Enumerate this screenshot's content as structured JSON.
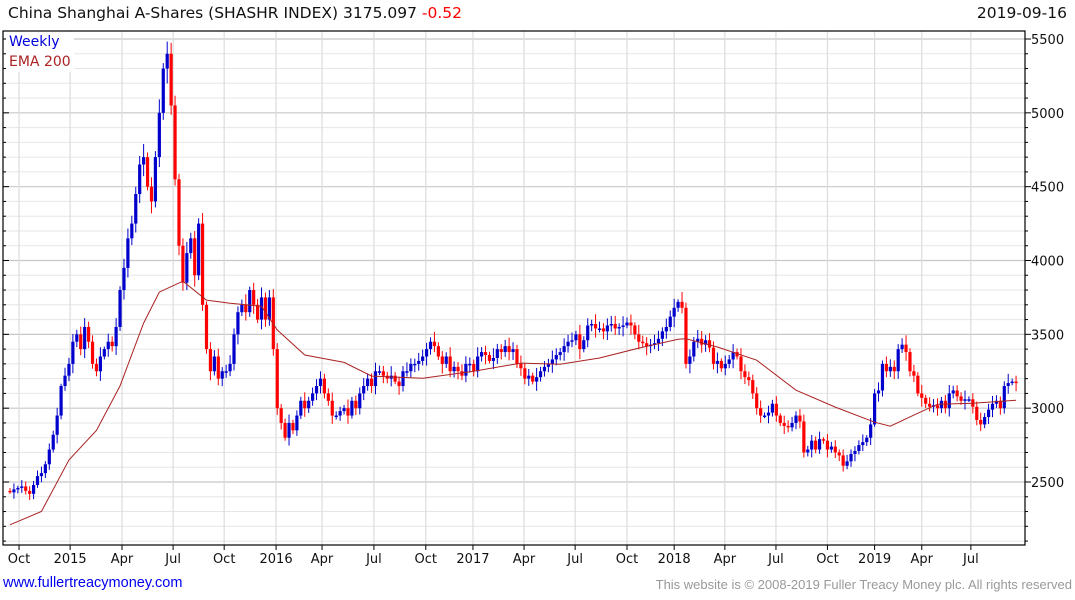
{
  "header": {
    "title": "China Shanghai A-Shares (SHASHR INDEX)",
    "last": "3175.097",
    "change": "-0.52",
    "date": "2019-09-16"
  },
  "footer": {
    "link": "www.fullertreacymoney.com",
    "copyright": "This website is © 2008-2019 Fuller Treacy Money plc. All rights reserved"
  },
  "colors": {
    "up": "#0000cc",
    "down": "#ff0000",
    "ema": "#aa2222",
    "grid_major": "#c8c8c8",
    "grid_minor": "#e6e6e6"
  },
  "chart_data": {
    "type": "candlestick",
    "title": "China Shanghai A-Shares (SHASHR INDEX)",
    "interval": "Weekly",
    "legend": [
      "Weekly",
      "EMA 200"
    ],
    "legend_position": "top-left",
    "ylim": [
      2070,
      5550
    ],
    "y_ticks": [
      2500,
      3000,
      3500,
      4000,
      4500,
      5000,
      5500
    ],
    "x_ticks": [
      {
        "label": "Oct",
        "week": 2.3
      },
      {
        "label": "2015",
        "week": 15.3
      },
      {
        "label": "Apr",
        "week": 28.5
      },
      {
        "label": "Jul",
        "week": 41.5
      },
      {
        "label": "Oct",
        "week": 54.5
      },
      {
        "label": "2016",
        "week": 67.7
      },
      {
        "label": "Apr",
        "week": 79.4
      },
      {
        "label": "Jul",
        "week": 92.6
      },
      {
        "label": "Oct",
        "week": 105.8
      },
      {
        "label": "2017",
        "week": 117.8
      },
      {
        "label": "Apr",
        "week": 130.8
      },
      {
        "label": "Jul",
        "week": 143.8
      },
      {
        "label": "Oct",
        "week": 157
      },
      {
        "label": "2018",
        "week": 169
      },
      {
        "label": "Apr",
        "week": 181.9
      },
      {
        "label": "Jul",
        "week": 194.9
      },
      {
        "label": "Oct",
        "week": 208
      },
      {
        "label": "2019",
        "week": 220
      },
      {
        "label": "Apr",
        "week": 232
      },
      {
        "label": "Jul",
        "week": 244.5
      }
    ],
    "weekly_close": [
      2430,
      2450,
      2460,
      2470,
      2440,
      2420,
      2480,
      2540,
      2560,
      2620,
      2720,
      2820,
      2950,
      3150,
      3220,
      3300,
      3450,
      3500,
      3400,
      3550,
      3450,
      3300,
      3250,
      3350,
      3400,
      3450,
      3420,
      3550,
      3800,
      3950,
      4150,
      4250,
      4450,
      4650,
      4700,
      4500,
      4400,
      4700,
      5000,
      5300,
      5400,
      5050,
      4550,
      4100,
      3850,
      4050,
      4150,
      3900,
      4250,
      3700,
      3400,
      3250,
      3350,
      3200,
      3250,
      3250,
      3300,
      3500,
      3650,
      3700,
      3650,
      3800,
      3700,
      3600,
      3750,
      3600,
      3750,
      3400,
      3000,
      2900,
      2800,
      2900,
      2850,
      2950,
      3050,
      3000,
      3050,
      3100,
      3150,
      3200,
      3100,
      3050,
      2950,
      2950,
      2980,
      3000,
      2950,
      3050,
      3000,
      3100,
      3150,
      3200,
      3150,
      3250,
      3250,
      3220,
      3200,
      3220,
      3180,
      3150,
      3250,
      3250,
      3300,
      3300,
      3320,
      3350,
      3400,
      3450,
      3420,
      3350,
      3300,
      3350,
      3250,
      3280,
      3250,
      3220,
      3300,
      3300,
      3250,
      3350,
      3380,
      3360,
      3320,
      3340,
      3400,
      3380,
      3420,
      3380,
      3400,
      3300,
      3270,
      3200,
      3220,
      3180,
      3210,
      3250,
      3280,
      3300,
      3330,
      3360,
      3380,
      3420,
      3450,
      3460,
      3500,
      3400,
      3460,
      3560,
      3570,
      3540,
      3540,
      3520,
      3560,
      3570,
      3540,
      3550,
      3560,
      3580,
      3560,
      3500,
      3450,
      3440,
      3420,
      3430,
      3440,
      3470,
      3520,
      3550,
      3620,
      3680,
      3720,
      3680,
      3300,
      3350,
      3450,
      3470,
      3430,
      3460,
      3410,
      3300,
      3320,
      3270,
      3300,
      3330,
      3380,
      3350,
      3250,
      3210,
      3190,
      3100,
      3000,
      2950,
      2950,
      2970,
      3030,
      2950,
      2900,
      2880,
      2870,
      2900,
      2950,
      2910,
      2700,
      2720,
      2780,
      2720,
      2790,
      2780,
      2720,
      2740,
      2700,
      2680,
      2610,
      2640,
      2690,
      2710,
      2750,
      2770,
      2800,
      2890,
      3100,
      3120,
      3300,
      3250,
      3280,
      3250,
      3400,
      3430,
      3380,
      3250,
      3220,
      3100,
      3070,
      3030,
      3010,
      3020,
      3000,
      3050,
      3000,
      3100,
      3120,
      3080,
      3050,
      3060,
      3060,
      3010,
      2920,
      2890,
      2940,
      2990,
      3030,
      3050,
      3000,
      3150,
      3170,
      3180,
      3175
    ],
    "first_open": 2440,
    "ema_200": [
      [
        0,
        2210
      ],
      [
        8,
        2300
      ],
      [
        15,
        2650
      ],
      [
        22,
        2850
      ],
      [
        28,
        3150
      ],
      [
        34,
        3576
      ],
      [
        38,
        3786
      ],
      [
        44,
        3860
      ],
      [
        50,
        3732
      ],
      [
        56,
        3710
      ],
      [
        64,
        3690
      ],
      [
        68,
        3530
      ],
      [
        75,
        3360
      ],
      [
        85,
        3310
      ],
      [
        92,
        3217
      ],
      [
        105,
        3203
      ],
      [
        118,
        3250
      ],
      [
        130,
        3305
      ],
      [
        140,
        3298
      ],
      [
        150,
        3340
      ],
      [
        160,
        3407
      ],
      [
        170,
        3467
      ],
      [
        172,
        3470
      ],
      [
        180,
        3414
      ],
      [
        190,
        3325
      ],
      [
        200,
        3122
      ],
      [
        210,
        3007
      ],
      [
        220,
        2905
      ],
      [
        224,
        2878
      ],
      [
        230,
        2953
      ],
      [
        236,
        3027
      ],
      [
        245,
        3034
      ],
      [
        256,
        3054
      ]
    ]
  }
}
